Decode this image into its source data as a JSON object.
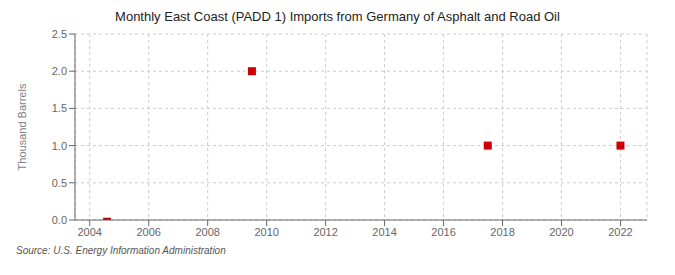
{
  "chart_data": {
    "type": "bar",
    "title": "Monthly East Coast (PADD 1) Imports from Germany of Asphalt and Road Oil",
    "ylabel": "Thousand Barrels",
    "annotations": [
      "Source: U.S. Energy Information Administration"
    ],
    "series": [
      {
        "type": "bar",
        "color": "#aa0000",
        "x": [
          2004.6
        ],
        "values": [
          0.03
        ]
      },
      {
        "type": "scatter",
        "color": "#cc0000",
        "marker": "square",
        "x": [
          2009.5,
          2017.5,
          2022.0
        ],
        "values": [
          2.0,
          1.0,
          1.0
        ]
      }
    ],
    "xlim": [
      2003.5,
      2022.9
    ],
    "xticks": [
      2004,
      2006,
      2008,
      2010,
      2012,
      2014,
      2016,
      2018,
      2020,
      2022
    ],
    "ylim": [
      0,
      2.5
    ],
    "yticks": [
      {
        "value": 0.0,
        "label": "0.0"
      },
      {
        "value": 0.5,
        "label": "0.5"
      },
      {
        "value": 1.0,
        "label": "1.0"
      },
      {
        "value": 1.5,
        "label": "1.5"
      },
      {
        "value": 2.0,
        "label": "2.0"
      },
      {
        "value": 2.5,
        "label": "2.5"
      }
    ],
    "grid": true
  }
}
